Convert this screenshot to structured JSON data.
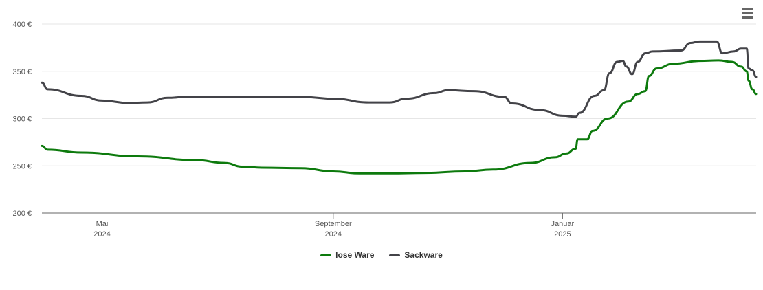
{
  "chart_data": {
    "type": "line",
    "title": "",
    "xlabel": "",
    "ylabel": "",
    "ylim": [
      200,
      400
    ],
    "xlim": [
      "2024-03-30",
      "2025-04-14"
    ],
    "y_ticks": [
      {
        "value": 200,
        "label": "200 €"
      },
      {
        "value": 250,
        "label": "250 €"
      },
      {
        "value": 300,
        "label": "300 €"
      },
      {
        "value": 350,
        "label": "350 €"
      },
      {
        "value": 400,
        "label": "400 €"
      }
    ],
    "x_ticks": [
      {
        "date": "2024-05-01",
        "line1": "Mai",
        "line2": "2024"
      },
      {
        "date": "2024-09-01",
        "line1": "September",
        "line2": "2024"
      },
      {
        "date": "2025-01-01",
        "line1": "Januar",
        "line2": "2025"
      }
    ],
    "grid": true,
    "legend_position": "bottom-center",
    "series": [
      {
        "name": "lose Ware",
        "color": "#0d7a0d",
        "points": [
          [
            "2024-03-30",
            271
          ],
          [
            "2024-04-02",
            267
          ],
          [
            "2024-04-20",
            264
          ],
          [
            "2024-05-20",
            260
          ],
          [
            "2024-06-20",
            256
          ],
          [
            "2024-07-05",
            253
          ],
          [
            "2024-07-15",
            249
          ],
          [
            "2024-07-25",
            248
          ],
          [
            "2024-08-15",
            247.5
          ],
          [
            "2024-09-01",
            244
          ],
          [
            "2024-09-15",
            242
          ],
          [
            "2024-10-01",
            242
          ],
          [
            "2024-10-20",
            242.5
          ],
          [
            "2024-11-10",
            244
          ],
          [
            "2024-11-25",
            246
          ],
          [
            "2024-12-15",
            253
          ],
          [
            "2024-12-28",
            259
          ],
          [
            "2025-01-03",
            263
          ],
          [
            "2025-01-08",
            268
          ],
          [
            "2025-01-09",
            278
          ],
          [
            "2025-01-14",
            278
          ],
          [
            "2025-01-17",
            287
          ],
          [
            "2025-01-25",
            300
          ],
          [
            "2025-02-05",
            318
          ],
          [
            "2025-02-10",
            326
          ],
          [
            "2025-02-14",
            329
          ],
          [
            "2025-02-16",
            345
          ],
          [
            "2025-02-20",
            353
          ],
          [
            "2025-03-01",
            358
          ],
          [
            "2025-03-15",
            361
          ],
          [
            "2025-03-25",
            361.5
          ],
          [
            "2025-04-01",
            360
          ],
          [
            "2025-04-06",
            355
          ],
          [
            "2025-04-09",
            350
          ],
          [
            "2025-04-10",
            340
          ],
          [
            "2025-04-12",
            331
          ],
          [
            "2025-04-14",
            326
          ]
        ]
      },
      {
        "name": "Sackware",
        "color": "#434348",
        "points": [
          [
            "2024-03-30",
            338
          ],
          [
            "2024-04-02",
            331
          ],
          [
            "2024-04-20",
            324
          ],
          [
            "2024-05-01",
            319
          ],
          [
            "2024-05-15",
            316.5
          ],
          [
            "2024-05-25",
            317
          ],
          [
            "2024-06-05",
            322
          ],
          [
            "2024-06-15",
            323
          ],
          [
            "2024-07-15",
            323
          ],
          [
            "2024-08-15",
            323
          ],
          [
            "2024-09-01",
            321
          ],
          [
            "2024-09-20",
            317
          ],
          [
            "2024-10-01",
            317
          ],
          [
            "2024-10-10",
            321
          ],
          [
            "2024-10-25",
            327
          ],
          [
            "2024-11-01",
            330
          ],
          [
            "2024-11-15",
            329
          ],
          [
            "2024-12-01",
            323
          ],
          [
            "2024-12-05",
            316
          ],
          [
            "2024-12-20",
            309
          ],
          [
            "2025-01-01",
            303
          ],
          [
            "2025-01-08",
            302
          ],
          [
            "2025-01-10",
            306
          ],
          [
            "2025-01-18",
            324
          ],
          [
            "2025-01-23",
            330
          ],
          [
            "2025-01-26",
            348
          ],
          [
            "2025-01-30",
            360
          ],
          [
            "2025-02-02",
            361
          ],
          [
            "2025-02-04",
            355
          ],
          [
            "2025-02-07",
            347
          ],
          [
            "2025-02-10",
            360
          ],
          [
            "2025-02-14",
            369
          ],
          [
            "2025-02-18",
            371
          ],
          [
            "2025-03-05",
            372
          ],
          [
            "2025-03-10",
            380
          ],
          [
            "2025-03-15",
            381.5
          ],
          [
            "2025-03-24",
            381.5
          ],
          [
            "2025-03-27",
            369
          ],
          [
            "2025-04-02",
            371
          ],
          [
            "2025-04-06",
            374
          ],
          [
            "2025-04-09",
            374
          ],
          [
            "2025-04-10",
            353
          ],
          [
            "2025-04-12",
            351
          ],
          [
            "2025-04-14",
            344
          ]
        ]
      }
    ]
  },
  "toolbar": {
    "menu_icon": "hamburger-menu-icon"
  }
}
